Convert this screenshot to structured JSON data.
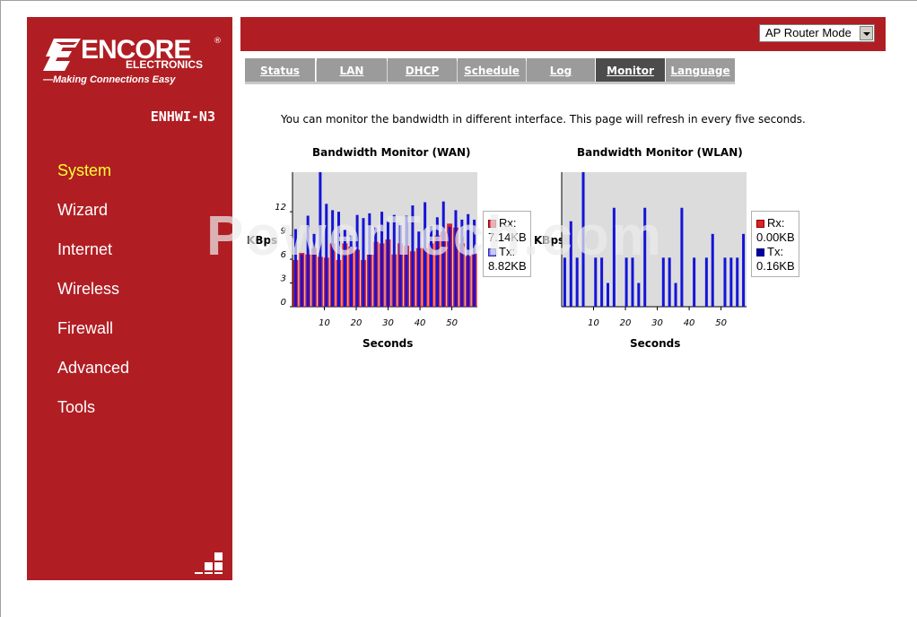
{
  "brand": {
    "logo_text": "ENCORE",
    "logo_sub": "ELECTRONICS",
    "logo_reg": "®",
    "tagline": "—Making Connections Easy",
    "model": "ENHWI-N3"
  },
  "sidebar": {
    "items": [
      {
        "label": "System",
        "active": true
      },
      {
        "label": "Wizard"
      },
      {
        "label": "Internet"
      },
      {
        "label": "Wireless"
      },
      {
        "label": "Firewall"
      },
      {
        "label": "Advanced"
      },
      {
        "label": "Tools"
      }
    ]
  },
  "header": {
    "mode_select": "AP Router Mode"
  },
  "tabs": [
    {
      "label": "Status"
    },
    {
      "label": "LAN"
    },
    {
      "label": "DHCP"
    },
    {
      "label": "Schedule"
    },
    {
      "label": "Log"
    },
    {
      "label": "Monitor",
      "active": true
    },
    {
      "label": "Language"
    }
  ],
  "description": "You can monitor the bandwidth in different interface. This page will refresh in every five seconds.",
  "watermark": "PowerTech.com",
  "colors": {
    "brand_red": "#b01e23",
    "rx": "#e0202a",
    "tx_wan": "#1414d8",
    "tx_wlan_swatch": "#0000aa",
    "tab_active": "#4c4c4c",
    "tab": "#9b9b9b",
    "plot_bg": "#dcdcdc"
  },
  "icons": [
    "grid-icon",
    "dropdown-arrow-icon"
  ],
  "chart_data": [
    {
      "type": "bar",
      "title": "Bandwidth Monitor (WAN)",
      "xlabel": "Seconds",
      "ylabel": "KBps",
      "x_ticks": [
        10,
        20,
        30,
        40,
        50
      ],
      "y_ticks": [
        0,
        3,
        6,
        9,
        12
      ],
      "xlim": [
        0,
        58
      ],
      "ylim": [
        0,
        17
      ],
      "series": [
        {
          "name": "Rx",
          "values": [
            5.9,
            6.8,
            6.6,
            7.4,
            6.3,
            6.2,
            8.0,
            5.9,
            8.0,
            7.6,
            7.2,
            5.9,
            6.6,
            8.2,
            8.0,
            8.5,
            6.6,
            8.0,
            7.7,
            7.0,
            7.4,
            7.4,
            8.0,
            9.0,
            9.5,
            10.5,
            10.0,
            8.0,
            6.4,
            6.7
          ]
        },
        {
          "name": "Tx",
          "values": [
            9.8,
            6.6,
            11.5,
            9.2,
            17.0,
            13.0,
            12.2,
            12.0,
            9.7,
            9.0,
            11.6,
            11.2,
            11.8,
            10.0,
            12.0,
            10.8,
            11.6,
            10.3,
            11.5,
            12.8,
            9.5,
            13.2,
            10.2,
            11.3,
            13.3,
            10.1,
            12.2,
            11.0,
            11.7,
            11.0
          ]
        }
      ],
      "legend": [
        {
          "label": "Rx:",
          "value": "7.14KB"
        },
        {
          "label": "Tx:",
          "value": "8.82KB"
        }
      ]
    },
    {
      "type": "bar",
      "title": "Bandwidth Monitor (WLAN)",
      "xlabel": "Seconds",
      "ylabel": "KBps",
      "x_ticks": [
        10,
        20,
        30,
        40,
        50
      ],
      "xlim": [
        0,
        58
      ],
      "ylim": [
        0,
        17
      ],
      "series": [
        {
          "name": "Rx",
          "values": [
            0,
            0,
            0,
            0,
            0,
            0,
            0,
            0,
            0,
            0,
            0,
            0,
            0,
            0,
            0,
            0,
            0,
            0,
            0,
            0,
            0,
            0,
            0,
            0,
            0,
            0,
            0,
            0,
            0,
            0
          ]
        },
        {
          "name": "Tx",
          "values": [
            6.2,
            10.8,
            6.2,
            17.0,
            0,
            6.2,
            6.2,
            3.0,
            12.5,
            0,
            6.2,
            6.2,
            3.0,
            12.5,
            0,
            0,
            6.2,
            6.2,
            3.0,
            12.5,
            0,
            6.2,
            0,
            6.2,
            9.2,
            0,
            6.2,
            6.2,
            6.2,
            9.2
          ]
        }
      ],
      "legend": [
        {
          "label": "Rx:",
          "value": "0.00KB"
        },
        {
          "label": "Tx:",
          "value": "0.16KB"
        }
      ]
    }
  ]
}
